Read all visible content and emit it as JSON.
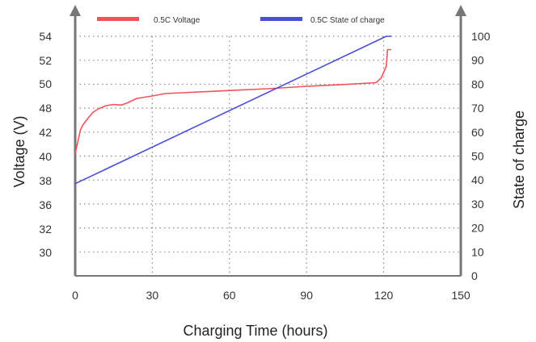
{
  "chart_data": {
    "type": "line",
    "title": "",
    "xlabel": "Charging Time (hours)",
    "ylabel_left": "Voltage (V)",
    "ylabel_right": "State of charge",
    "x_ticks": [
      "0",
      "30",
      "60",
      "90",
      "120",
      "150"
    ],
    "y_left_ticks": [
      "54",
      "52",
      "50",
      "48",
      "42",
      "40",
      "38",
      "36",
      "32",
      "30"
    ],
    "y_right_ticks": [
      "100",
      "90",
      "80",
      "70",
      "60",
      "50",
      "40",
      "30",
      "20",
      "10",
      "0"
    ],
    "xlim": [
      0,
      150
    ],
    "y_right_lim": [
      0,
      100
    ],
    "grid": true,
    "legend_position": "top",
    "series": [
      {
        "name": "0.5C Voltage",
        "axis": "left",
        "color": "#f0525a",
        "points": [
          [
            0,
            40.2
          ],
          [
            1,
            41.2
          ],
          [
            2,
            42.5
          ],
          [
            3,
            43.8
          ],
          [
            5,
            45.5
          ],
          [
            7,
            47.0
          ],
          [
            9,
            47.8
          ],
          [
            12,
            48.2
          ],
          [
            15,
            48.3
          ],
          [
            18,
            48.25
          ],
          [
            20,
            48.4
          ],
          [
            24,
            48.8
          ],
          [
            27,
            48.9
          ],
          [
            30,
            49.0
          ],
          [
            35,
            49.2
          ],
          [
            45,
            49.3
          ],
          [
            60,
            49.45
          ],
          [
            75,
            49.6
          ],
          [
            90,
            49.8
          ],
          [
            105,
            49.95
          ],
          [
            117,
            50.1
          ],
          [
            119,
            50.5
          ],
          [
            120,
            51.0
          ],
          [
            121,
            51.5
          ],
          [
            121.5,
            52.9
          ],
          [
            123,
            52.9
          ]
        ]
      },
      {
        "name": "0.5C State of charge",
        "axis": "right",
        "color": "#4a4fd6",
        "points": [
          [
            0,
            38.5
          ],
          [
            121,
            100
          ],
          [
            123,
            100
          ]
        ]
      }
    ]
  }
}
